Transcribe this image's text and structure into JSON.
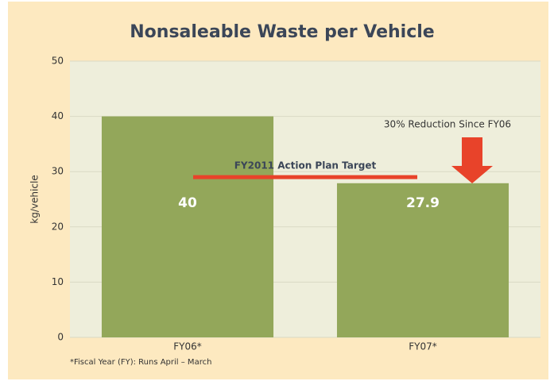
{
  "chart_data": {
    "type": "bar",
    "title": "Nonsaleable Waste per Vehicle",
    "y_label": "kg/vehicle",
    "categories": [
      "FY06*",
      "FY07*"
    ],
    "values": [
      40,
      27.9
    ],
    "color": "#93a75a",
    "ylim": [
      0,
      50
    ],
    "yticks": [
      0,
      10,
      20,
      30,
      40,
      50
    ],
    "grid": true,
    "target": {
      "label": "FY2011 Action Plan Target",
      "value": 29,
      "color": "#e8432a"
    },
    "annotation": "30% Reduction Since FY06",
    "footnote": "*Fiscal Year (FY): Runs April – March"
  }
}
